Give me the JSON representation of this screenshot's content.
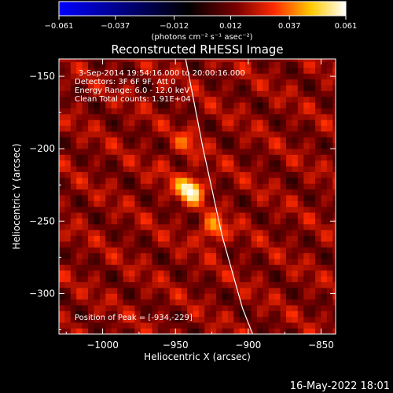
{
  "chart_data": {
    "type": "heatmap",
    "title": "Reconstructed RHESSI Image",
    "xlabel": "Heliocentric X (arcsec)",
    "ylabel": "Heliocentric Y (arcsec)",
    "xlim": [
      -1030,
      -840
    ],
    "ylim": [
      -328,
      -138
    ],
    "x_ticks": [
      {
        "value": -1000,
        "label": "−1000"
      },
      {
        "value": -950,
        "label": "−950"
      },
      {
        "value": -900,
        "label": "−900"
      },
      {
        "value": -850,
        "label": "−850"
      }
    ],
    "y_ticks": [
      {
        "value": -150,
        "label": "−150"
      },
      {
        "value": -200,
        "label": "−200"
      },
      {
        "value": -250,
        "label": "−250"
      },
      {
        "value": -300,
        "label": "−300"
      }
    ],
    "colorbar": {
      "range": [
        -0.061,
        0.061
      ],
      "tick_values": [
        -0.061,
        -0.037,
        -0.012,
        0.012,
        0.037,
        0.061
      ],
      "tick_labels": [
        "−0.061",
        "−0.037",
        "−0.012",
        "0.012",
        "0.037",
        "0.061"
      ],
      "units": "(photons cm⁻² s⁻¹ asec⁻²)",
      "colormap": [
        "#0000ff",
        "#000000",
        "#ff0000",
        "#ffff00",
        "#ffffff"
      ]
    },
    "sources": [
      {
        "x": -940,
        "y": -228,
        "peak": 0.061
      },
      {
        "x": -924,
        "y": -256,
        "peak": 0.043
      },
      {
        "x": -942,
        "y": -196,
        "peak": 0.03
      },
      {
        "x": -955,
        "y": -213,
        "peak": 0.022
      }
    ],
    "peak": {
      "x": -934,
      "y": -229
    },
    "limb_curve": [
      [
        -943,
        -138
      ],
      [
        -931,
        -200
      ],
      [
        -918,
        -260
      ],
      [
        -904,
        -310
      ],
      [
        -897,
        -328
      ]
    ],
    "annotations": [
      "3-Sep-2014 19:54:16.000 to 20:00:16.000",
      "Detectors: 3F 6F 9F, Att 0",
      "Energy Range: 6.0 - 12.0 keV",
      "Clean     Total counts: 1.91E+04",
      "Position of Peak = [-934,-229]"
    ],
    "grid": false,
    "legend": "none"
  },
  "footer": {
    "timestamp": "16-May-2022 18:01"
  },
  "colors": {
    "background": "#000000",
    "text": "#ffffff",
    "limb": "#ffffff"
  }
}
